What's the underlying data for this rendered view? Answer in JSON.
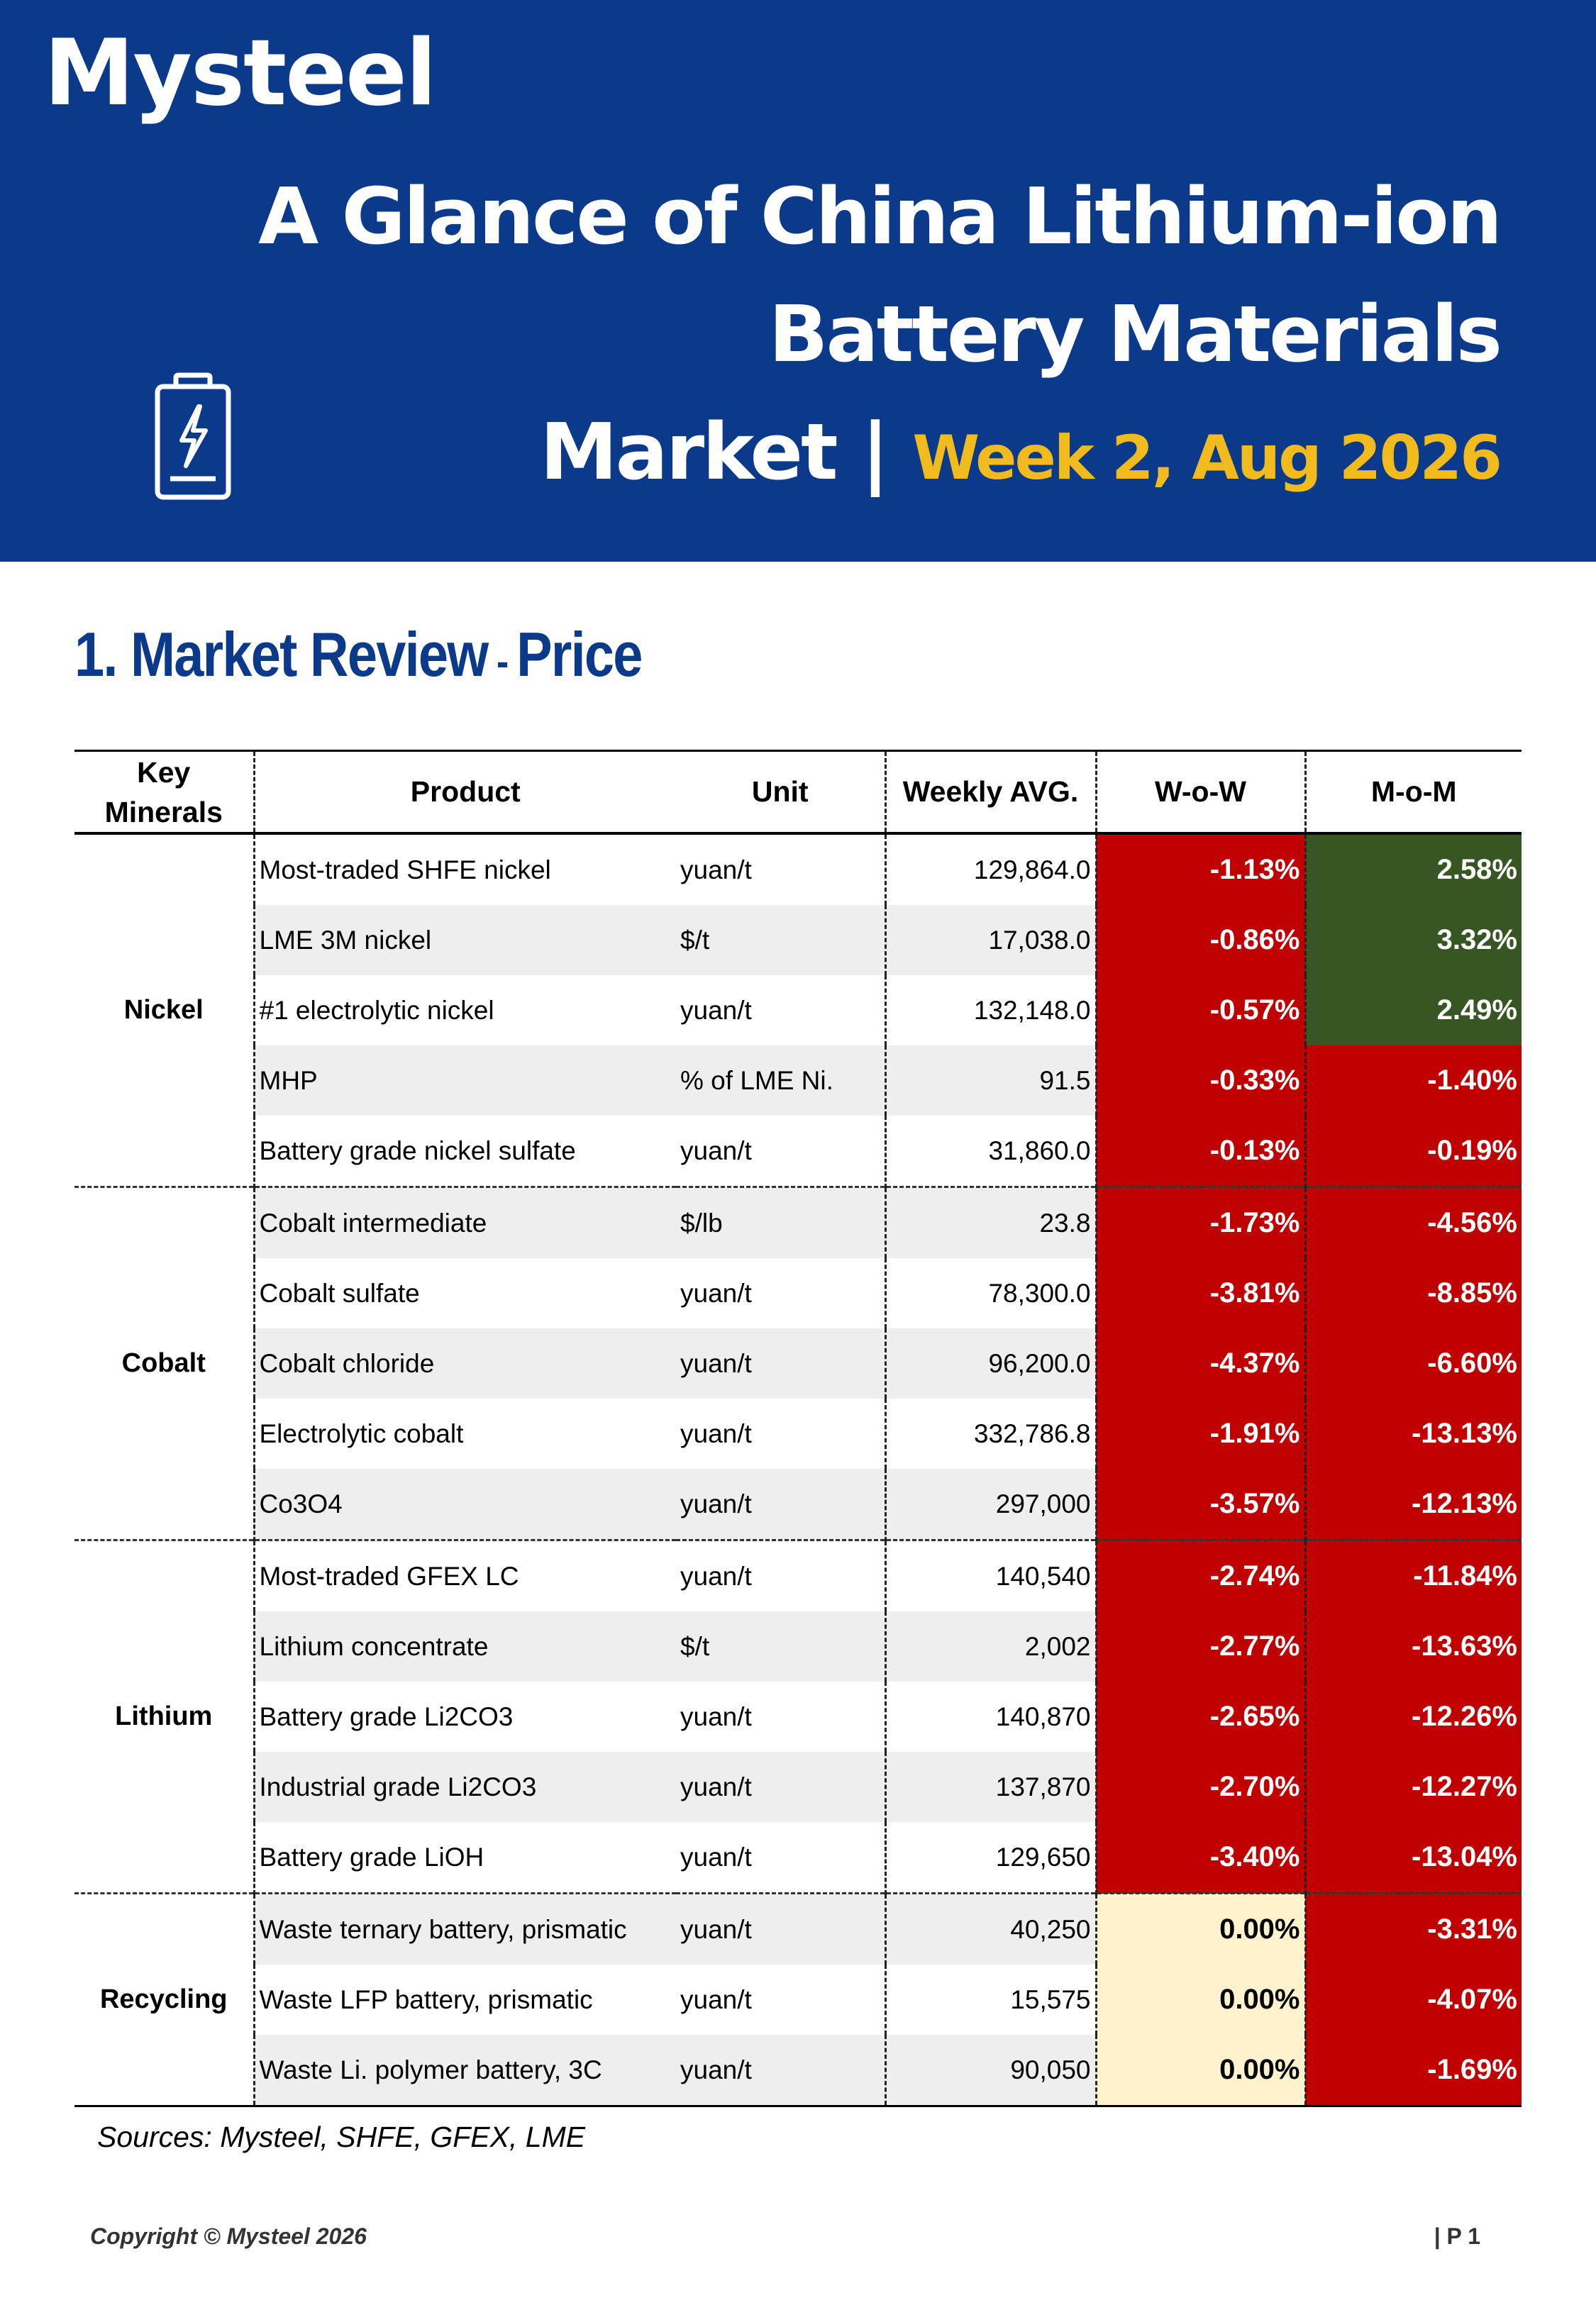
{
  "header": {
    "logo_text": "Mysteel",
    "title_line1": "A Glance of China Lithium-ion",
    "title_line2": "Battery Materials",
    "title_line3": "Market |",
    "title_week": "Week 2, Aug 2026",
    "icon": "battery-charging-icon"
  },
  "section": {
    "title": "1. Market Review",
    "dash": " - ",
    "subtitle": "Price"
  },
  "table": {
    "headers": {
      "minerals": "Key Minerals",
      "product": "Product",
      "unit": "Unit",
      "avg": "Weekly AVG.",
      "wow": "W-o-W",
      "mom": "M-o-M"
    },
    "groups": [
      {
        "name": "Nickel",
        "rows": [
          {
            "product": "Most-traded SHFE nickel",
            "unit": "yuan/t",
            "avg": "129,864.0",
            "wow": "-1.13%",
            "mom": "2.58%"
          },
          {
            "product": "LME 3M nickel",
            "unit": "$/t",
            "avg": "17,038.0",
            "wow": "-0.86%",
            "mom": "3.32%"
          },
          {
            "product": "#1 electrolytic nickel",
            "unit": "yuan/t",
            "avg": "132,148.0",
            "wow": "-0.57%",
            "mom": "2.49%"
          },
          {
            "product": "MHP",
            "unit": "% of LME Ni.",
            "avg": "91.5",
            "wow": "-0.33%",
            "mom": "-1.40%"
          },
          {
            "product": "Battery grade nickel sulfate",
            "unit": "yuan/t",
            "avg": "31,860.0",
            "wow": "-0.13%",
            "mom": "-0.19%"
          }
        ]
      },
      {
        "name": "Cobalt",
        "rows": [
          {
            "product": "Cobalt intermediate",
            "unit": "$/lb",
            "avg": "23.8",
            "wow": "-1.73%",
            "mom": "-4.56%"
          },
          {
            "product": "Cobalt sulfate",
            "unit": "yuan/t",
            "avg": "78,300.0",
            "wow": "-3.81%",
            "mom": "-8.85%"
          },
          {
            "product": "Cobalt chloride",
            "unit": "yuan/t",
            "avg": "96,200.0",
            "wow": "-4.37%",
            "mom": "-6.60%"
          },
          {
            "product": "Electrolytic cobalt",
            "unit": "yuan/t",
            "avg": "332,786.8",
            "wow": "-1.91%",
            "mom": "-13.13%"
          },
          {
            "product": "Co3O4",
            "unit": "yuan/t",
            "avg": "297,000",
            "wow": "-3.57%",
            "mom": "-12.13%"
          }
        ]
      },
      {
        "name": "Lithium",
        "rows": [
          {
            "product": "Most-traded GFEX LC",
            "unit": "yuan/t",
            "avg": "140,540",
            "wow": "-2.74%",
            "mom": "-11.84%"
          },
          {
            "product": "Lithium concentrate",
            "unit": "$/t",
            "avg": "2,002",
            "wow": "-2.77%",
            "mom": "-13.63%"
          },
          {
            "product": "Battery grade Li2CO3",
            "unit": "yuan/t",
            "avg": "140,870",
            "wow": "-2.65%",
            "mom": "-12.26%"
          },
          {
            "product": "Industrial grade Li2CO3",
            "unit": "yuan/t",
            "avg": "137,870",
            "wow": "-2.70%",
            "mom": "-12.27%"
          },
          {
            "product": "Battery grade LiOH",
            "unit": "yuan/t",
            "avg": "129,650",
            "wow": "-3.40%",
            "mom": "-13.04%"
          }
        ]
      },
      {
        "name": "Recycling",
        "rows": [
          {
            "product": "Waste ternary battery, prismatic",
            "unit": "yuan/t",
            "avg": "40,250",
            "wow": "0.00%",
            "mom": "-3.31%"
          },
          {
            "product": "Waste LFP battery, prismatic",
            "unit": "yuan/t",
            "avg": "15,575",
            "wow": "0.00%",
            "mom": "-4.07%"
          },
          {
            "product": "Waste Li. polymer battery, 3C",
            "unit": "yuan/t",
            "avg": "90,050",
            "wow": "0.00%",
            "mom": "-1.69%"
          }
        ]
      }
    ]
  },
  "colors": {
    "banner": "#0b3a8a",
    "accent_week": "#f2bb1d",
    "negative": "#c00000",
    "positive": "#375623",
    "neutral": "#fff2cc"
  },
  "footer": {
    "sources": "Sources: Mysteel, SHFE, GFEX, LME",
    "copyright": "Copyright © Mysteel 2026",
    "page": "| P 1"
  }
}
